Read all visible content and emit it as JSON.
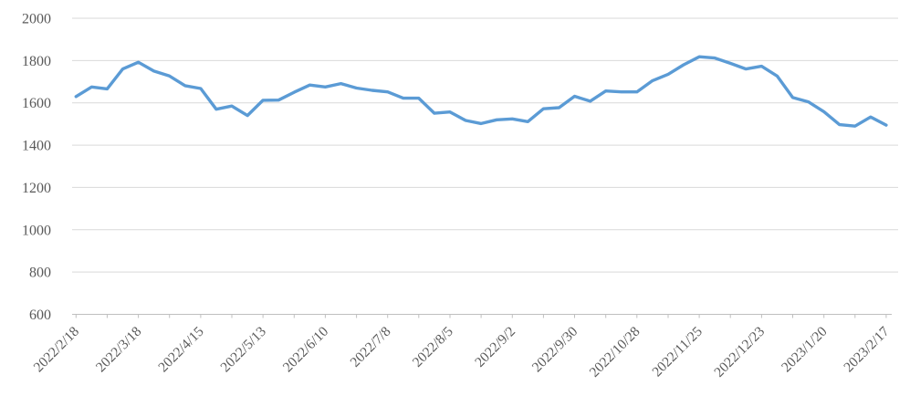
{
  "chart": {
    "background_color": "#ffffff"
  },
  "chart_data": {
    "type": "line",
    "title": "",
    "legend": "none",
    "grid": "horizontal-major",
    "x_tick_labels": [
      "2022/2/18",
      "2022/3/18",
      "2022/4/15",
      "2022/5/13",
      "2022/6/10",
      "2022/7/8",
      "2022/8/5",
      "2022/9/2",
      "2022/9/30",
      "2022/10/28",
      "2022/11/25",
      "2022/12/23",
      "2023/1/20",
      "2023/2/17"
    ],
    "x_label_interval": 4,
    "x_minor_tick_interval": 2,
    "x_label_rotation_deg": -45,
    "values": [
      1630,
      1675,
      1666,
      1760,
      1792,
      1750,
      1727,
      1681,
      1668,
      1570,
      1585,
      1540,
      1612,
      1613,
      1650,
      1684,
      1675,
      1691,
      1670,
      1659,
      1652,
      1622,
      1622,
      1551,
      1557,
      1517,
      1502,
      1520,
      1524,
      1511,
      1572,
      1577,
      1631,
      1608,
      1656,
      1652,
      1652,
      1705,
      1735,
      1780,
      1818,
      1812,
      1787,
      1760,
      1773,
      1727,
      1625,
      1605,
      1558,
      1497,
      1490,
      1533,
      1495
    ],
    "ylim": [
      600,
      2000
    ],
    "y_tick_step": 200,
    "y_tick_labels": [
      "600",
      "800",
      "1000",
      "1200",
      "1400",
      "1600",
      "1800",
      "2000"
    ],
    "colors": {
      "line": "#5b9bd5",
      "gridline": "#d9d9d9",
      "axis": "#bfbfbf",
      "tick_label": "#595959"
    }
  }
}
